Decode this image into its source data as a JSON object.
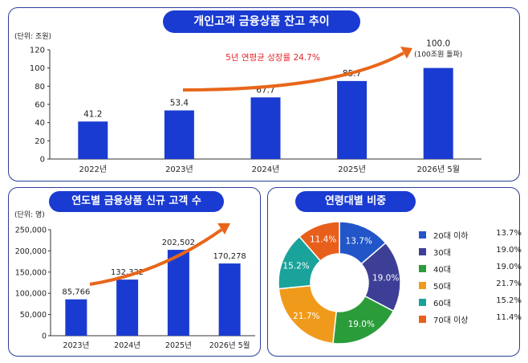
{
  "chart_data": [
    {
      "type": "bar",
      "title": "개인고객 금융상품 잔고 추이",
      "unit_label": "(단위: 조원)",
      "categories": [
        "2022년",
        "2023년",
        "2024년",
        "2025년",
        "2026년 5월"
      ],
      "values": [
        41.2,
        53.4,
        67.7,
        85.7,
        100.0
      ],
      "value_labels": [
        "41.2",
        "53.4",
        "67.7",
        "85.7",
        "100.0"
      ],
      "extra_label": "(100조원 돌파)",
      "annotation": "5년 연평균 성장률 24.7%",
      "ylim": [
        0,
        120
      ],
      "yticks": [
        0,
        20,
        40,
        60,
        80,
        100,
        120
      ],
      "grid": false,
      "bar_color": "#1a3bd1",
      "arrow_color": "#e8661a"
    },
    {
      "type": "bar",
      "title": "연도별 금융상품 신규 고객 수",
      "unit_label": "(단위: 명)",
      "categories": [
        "2023년",
        "2024년",
        "2025년",
        "2026년 5월"
      ],
      "values": [
        85766,
        132322,
        202502,
        170278
      ],
      "value_labels": [
        "85,766",
        "132,322",
        "202,502",
        "170,278"
      ],
      "ylim": [
        0,
        250000
      ],
      "yticks": [
        0,
        50000,
        100000,
        150000,
        200000,
        250000
      ],
      "ytick_labels": [
        "0",
        "50,000",
        "100,000",
        "150,000",
        "200,000",
        "250,000"
      ],
      "grid": false,
      "bar_color": "#1a3bd1",
      "arrow_color": "#e8661a"
    },
    {
      "type": "pie",
      "title": "연령대별 비중",
      "labels": [
        "20대 이하",
        "30대",
        "40대",
        "50대",
        "60대",
        "70대 이상"
      ],
      "values": [
        13.7,
        19.0,
        19.0,
        21.7,
        15.2,
        11.4
      ],
      "value_labels": [
        "13.7%",
        "19.0%",
        "19.0%",
        "21.7%",
        "15.2%",
        "11.4%"
      ],
      "colors": [
        "#2255c8",
        "#3d3f96",
        "#2b9c3a",
        "#f09a1c",
        "#1aa39a",
        "#e85f1c"
      ],
      "legend": "right"
    }
  ]
}
